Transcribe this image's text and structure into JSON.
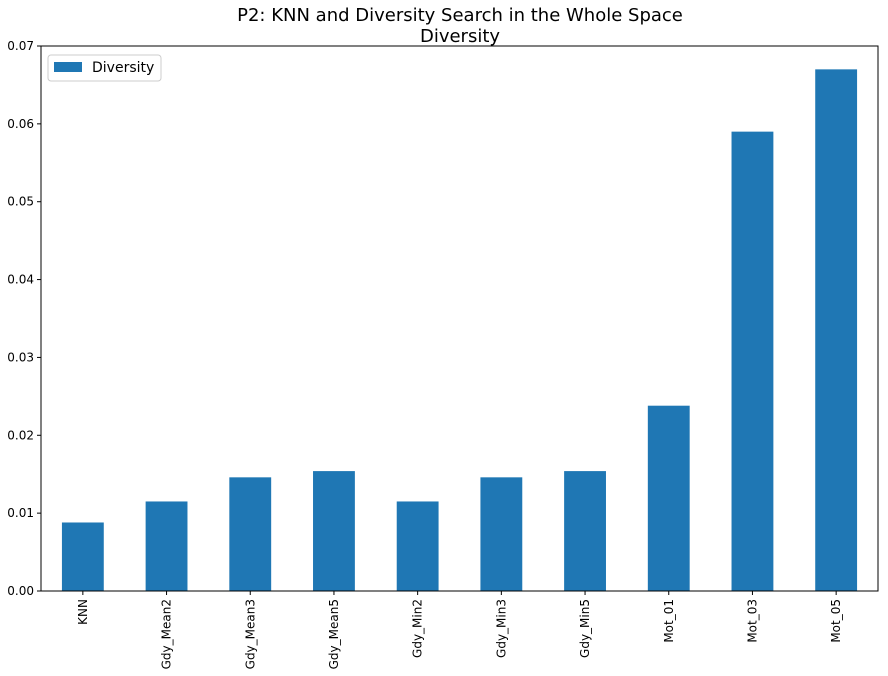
{
  "chart_data": {
    "type": "bar",
    "title": "P2: KNN and Diversity Search in the Whole Space",
    "subtitle": "Diversity",
    "categories": [
      "KNN",
      "Gdy_Mean2",
      "Gdy_Mean3",
      "Gdy_Mean5",
      "Gdy_Min2",
      "Gdy_Min3",
      "Gdy_Min5",
      "Mot_01",
      "Mot_03",
      "Mot_05"
    ],
    "series": [
      {
        "name": "Diversity",
        "color": "#1f77b4",
        "values": [
          0.0088,
          0.0115,
          0.0146,
          0.0154,
          0.0115,
          0.0146,
          0.0154,
          0.0238,
          0.059,
          0.067
        ]
      }
    ],
    "yticks": [
      "0.00",
      "0.01",
      "0.02",
      "0.03",
      "0.04",
      "0.05",
      "0.06",
      "0.07"
    ],
    "ylim": [
      0,
      0.07
    ],
    "xlabel": "",
    "ylabel": "",
    "grid": false,
    "legend_position": "top-left"
  }
}
